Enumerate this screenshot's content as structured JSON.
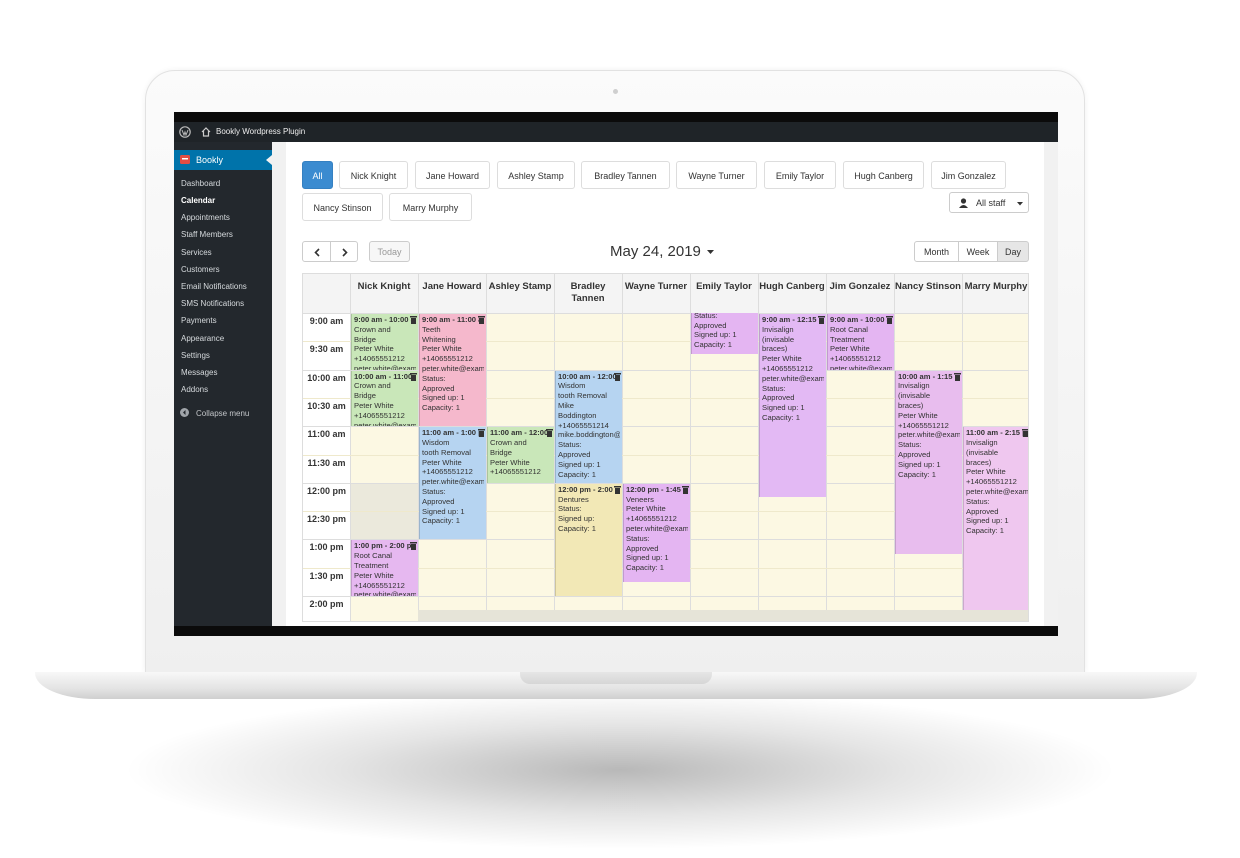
{
  "admin_bar": {
    "site_name": "Bookly Wordpress Plugin"
  },
  "sidebar": {
    "plugin": "Bookly",
    "menu": [
      "Dashboard",
      "Calendar",
      "Appointments",
      "Staff Members",
      "Services",
      "Customers",
      "Email Notifications",
      "SMS Notifications",
      "Payments",
      "Appearance",
      "Settings",
      "Messages",
      "Addons"
    ],
    "collapse": "Collapse menu"
  },
  "staff_filter": {
    "buttons": [
      "All",
      "Nick Knight",
      "Jane Howard",
      "Ashley Stamp",
      "Bradley Tannen",
      "Wayne Turner",
      "Emily Taylor",
      "Hugh Canberg",
      "Jim Gonzalez",
      "Nancy Stinson",
      "Marry Murphy"
    ],
    "dropdown": "All staff"
  },
  "toolbar": {
    "today": "Today",
    "date": "May 24, 2019",
    "views": [
      "Month",
      "Week",
      "Day"
    ]
  },
  "calendar": {
    "times": [
      "9:00 am",
      "9:30 am",
      "10:00 am",
      "10:30 am",
      "11:00 am",
      "11:30 am",
      "12:00 pm",
      "12:30 pm",
      "1:00 pm",
      "1:30 pm",
      "2:00 pm"
    ],
    "columns": [
      {
        "name": "Nick Knight",
        "events": [
          {
            "time": "9:00 am - 10:00 am",
            "lines": [
              "Crown and",
              "Bridge",
              "Peter White",
              "+14065551212",
              "peter.white@example.com"
            ]
          },
          {
            "time": "10:00 am - 11:00 am",
            "lines": [
              "Crown and",
              "Bridge",
              "Peter White",
              "+14065551212",
              "peter.white@example.com"
            ]
          },
          {
            "time": "1:00 pm - 2:00 pm",
            "lines": [
              "Root Canal",
              "Treatment",
              "Peter White",
              "+14065551212",
              "peter.white@example.com"
            ]
          }
        ]
      },
      {
        "name": "Jane Howard",
        "events": [
          {
            "time": "9:00 am - 11:00 am",
            "lines": [
              "Teeth",
              "Whitening",
              "Peter White",
              "+14065551212",
              "peter.white@example.com",
              "Status:",
              "Approved",
              "Signed up: 1",
              "Capacity: 1"
            ]
          },
          {
            "time": "11:00 am - 1:00 pm",
            "lines": [
              "Wisdom",
              "tooth Removal",
              "Peter White",
              "+14065551212",
              "peter.white@example.com",
              "Status:",
              "Approved",
              "Signed up: 1",
              "Capacity: 1"
            ]
          }
        ]
      },
      {
        "name": "Ashley Stamp",
        "events": [
          {
            "time": "11:00 am - 12:00 pm",
            "lines": [
              "Crown and",
              "Bridge",
              "Peter White",
              "+14065551212"
            ]
          }
        ]
      },
      {
        "name": "Bradley Tannen",
        "events": [
          {
            "time": "10:00 am - 12:00 pm",
            "lines": [
              "Wisdom",
              "tooth Removal",
              "Mike",
              "Boddington",
              "+14065551214",
              "mike.boddington@example.com",
              "Status:",
              "Approved",
              "Signed up: 1",
              "Capacity: 1"
            ]
          },
          {
            "time": "12:00 pm - 2:00 pm",
            "lines": [
              "Dentures",
              "Status:",
              "Signed up:",
              "Capacity: 1"
            ]
          }
        ]
      },
      {
        "name": "Wayne Turner",
        "events": [
          {
            "time": "12:00 pm - 1:45 pm",
            "lines": [
              "Veneers",
              "Peter White",
              "+14065551212",
              "peter.white@example.com",
              "Status:",
              "Approved",
              "Signed up: 1",
              "Capacity: 1"
            ]
          }
        ]
      },
      {
        "name": "Emily Taylor",
        "events": [
          {
            "lines": [
              "Status:",
              "Approved",
              "Signed up: 1",
              "Capacity: 1"
            ]
          }
        ]
      },
      {
        "name": "Hugh Canberg",
        "events": [
          {
            "time": "9:00 am - 12:15 pm",
            "lines": [
              "Invisalign",
              "(invisable",
              "braces)",
              "Peter White",
              "+14065551212",
              "peter.white@example.com",
              "Status:",
              "Approved",
              "Signed up: 1",
              "Capacity: 1"
            ]
          }
        ]
      },
      {
        "name": "Jim Gonzalez",
        "events": [
          {
            "time": "9:00 am - 10:00 am",
            "lines": [
              "Root Canal",
              "Treatment",
              "Peter White",
              "+14065551212",
              "peter.white@example.com"
            ]
          }
        ]
      },
      {
        "name": "Nancy Stinson",
        "events": [
          {
            "time": "10:00 am - 1:15 pm",
            "lines": [
              "Invisalign",
              "(invisable",
              "braces)",
              "Peter White",
              "+14065551212",
              "peter.white@example.com",
              "Status:",
              "Approved",
              "Signed up: 1",
              "Capacity: 1"
            ]
          }
        ]
      },
      {
        "name": "Marry Murphy",
        "events": [
          {
            "time": "11:00 am - 2:15 pm",
            "lines": [
              "Invisalign",
              "(invisable",
              "braces)",
              "Peter White",
              "+14065551212",
              "peter.white@example.com",
              "Status:",
              "Approved",
              "Signed up: 1",
              "Capacity: 1"
            ]
          }
        ]
      }
    ]
  }
}
